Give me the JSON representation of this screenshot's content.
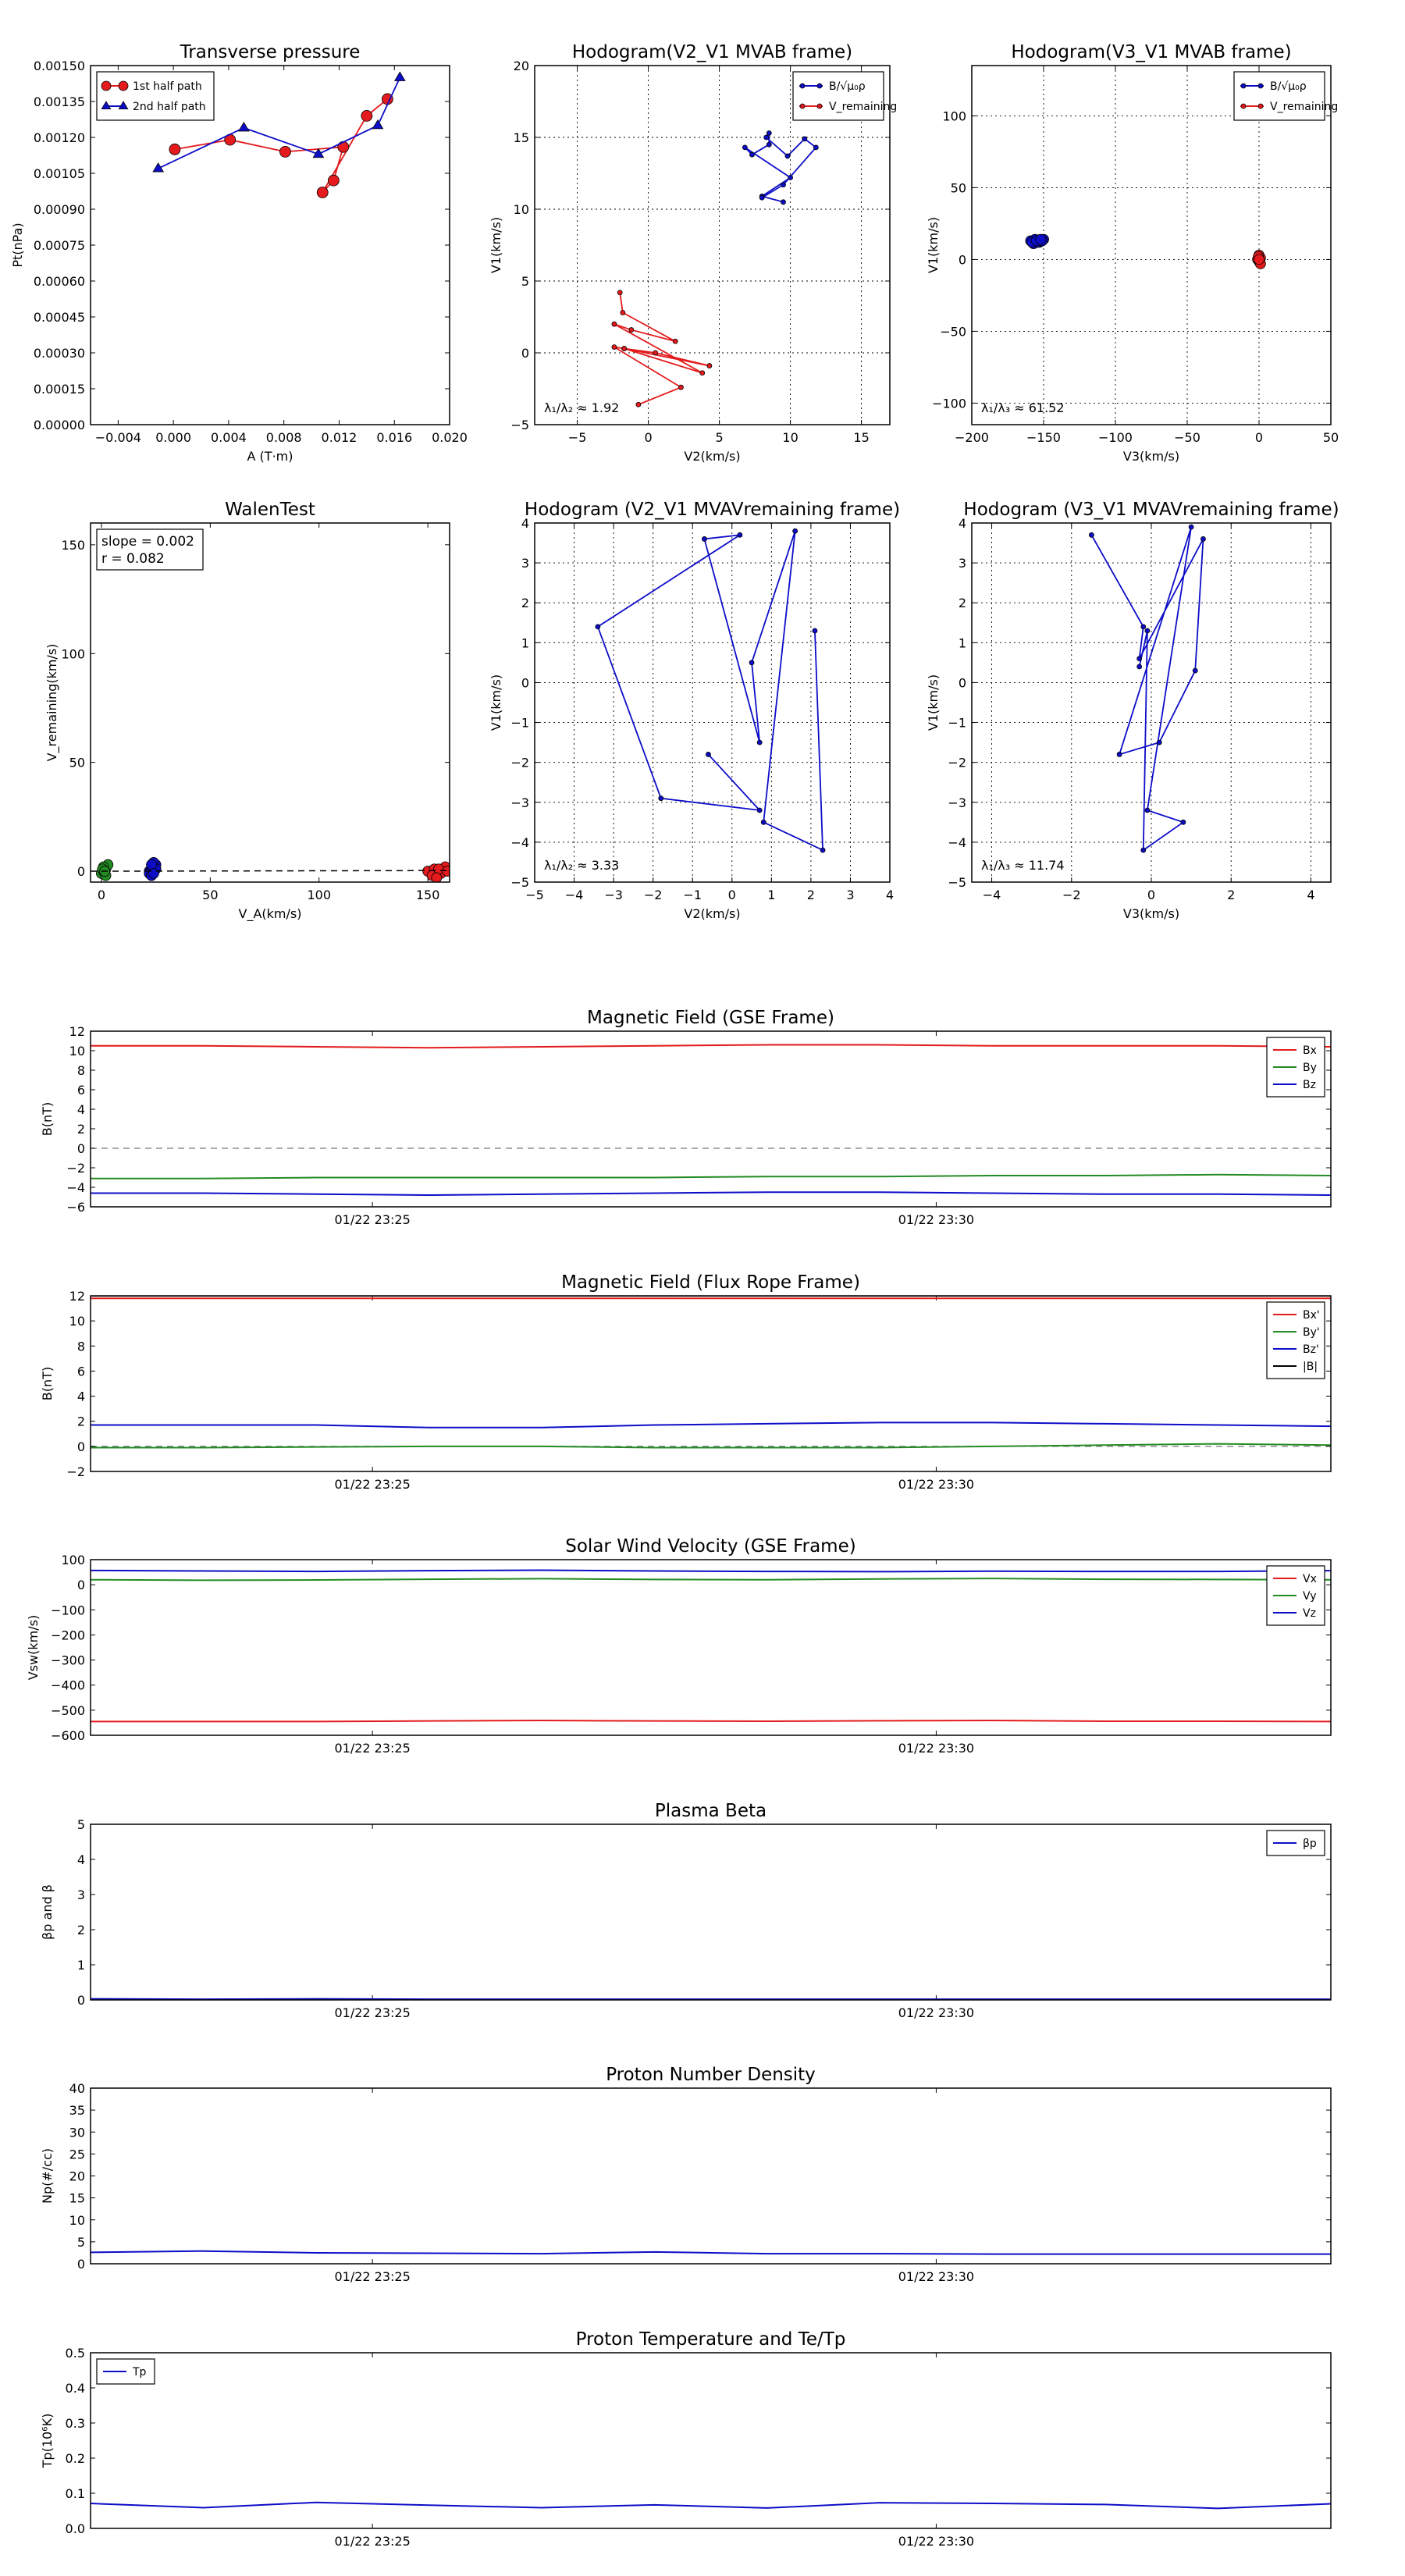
{
  "chart_data": [
    {
      "id": "tp",
      "type": "scatter",
      "title": "Transverse pressure",
      "xlabel": "A (T·m)",
      "ylabel": "Pt(nPa)",
      "xlim": [
        -0.006,
        0.02
      ],
      "ylim": [
        0,
        0.0015
      ],
      "xticks": [
        -0.004,
        0.0,
        0.004,
        0.008,
        0.012,
        0.016,
        0.02
      ],
      "xtick_labels": [
        "−0.004",
        "0.000",
        "0.004",
        "0.008",
        "0.012",
        "0.016",
        "0.020"
      ],
      "yticks": [
        0,
        0.00015,
        0.0003,
        0.00045,
        0.0006,
        0.00075,
        0.0009,
        0.00105,
        0.0012,
        0.00135,
        0.0015
      ],
      "ytick_labels": [
        "0.00000",
        "0.00015",
        "0.00030",
        "0.00045",
        "0.00060",
        "0.00075",
        "0.00090",
        "0.00105",
        "0.00120",
        "0.00135",
        "0.00150"
      ],
      "grid": false,
      "legend": "top-left",
      "series": [
        {
          "name": "1st half path",
          "color": "#e41a1c",
          "marker": "circle",
          "x": [
            0.0001,
            0.0041,
            0.0081,
            0.0123,
            0.0116,
            0.0108,
            0.014,
            0.0155
          ],
          "y": [
            0.00115,
            0.00119,
            0.00114,
            0.00116,
            0.00102,
            0.00097,
            0.00129,
            0.00136
          ]
        },
        {
          "name": "2nd half path",
          "color": "#0d0dc8",
          "marker": "triangle",
          "x": [
            -0.0011,
            0.0051,
            0.0105,
            0.0148,
            0.0164
          ],
          "y": [
            0.00107,
            0.00124,
            0.00113,
            0.00125,
            0.00145
          ]
        }
      ]
    },
    {
      "id": "h1",
      "type": "line",
      "title": "Hodogram(V2_V1 MVAB frame)",
      "xlabel": "V2(km/s)",
      "ylabel": "V1(km/s)",
      "xlim": [
        -8,
        17
      ],
      "ylim": [
        -5,
        20
      ],
      "xticks": [
        -5,
        0,
        5,
        10,
        15
      ],
      "xtick_labels": [
        "−5",
        "0",
        "5",
        "10",
        "15"
      ],
      "yticks": [
        -5,
        0,
        5,
        10,
        15,
        20
      ],
      "ytick_labels": [
        "−5",
        "0",
        "5",
        "10",
        "15",
        "20"
      ],
      "grid": true,
      "legend": "top-right",
      "annotation": "λ₁/λ₂ ≈ 1.92",
      "series": [
        {
          "name": "B/√μ₀ρ",
          "color": "#0d0dc8",
          "x": [
            9.5,
            8,
            10,
            6.8,
            7.3,
            8.5,
            8.5,
            8.3,
            9.8,
            11.0,
            11.8,
            9.5,
            8.0
          ],
          "y": [
            10.5,
            10.9,
            12.2,
            14.3,
            13.8,
            14.5,
            15.3,
            15.0,
            13.7,
            14.9,
            14.3,
            11.7,
            10.8
          ]
        },
        {
          "name": "V_remaining",
          "color": "#e41a1c",
          "x": [
            -2.0,
            -1.8,
            1.9,
            -1.2,
            -2.4,
            3.8,
            -1.7,
            0.5,
            4.3,
            -1.7,
            -2.4,
            2.3,
            -0.7
          ],
          "y": [
            4.2,
            2.8,
            0.8,
            1.6,
            2.0,
            -1.4,
            0.3,
            0.0,
            -0.9,
            0.3,
            0.4,
            -2.4,
            -3.6
          ]
        }
      ]
    },
    {
      "id": "h2",
      "type": "scatter",
      "title": "Hodogram(V3_V1 MVAB frame)",
      "xlabel": "V3(km/s)",
      "ylabel": "V1(km/s)",
      "xlim": [
        -200,
        50
      ],
      "ylim": [
        -115,
        135
      ],
      "xticks": [
        -200,
        -150,
        -100,
        -50,
        0,
        50
      ],
      "xtick_labels": [
        "−200",
        "−150",
        "−100",
        "−50",
        "0",
        "50"
      ],
      "yticks": [
        -100,
        -50,
        0,
        50,
        100
      ],
      "ytick_labels": [
        "−100",
        "−50",
        "0",
        "50",
        "100"
      ],
      "grid": true,
      "legend": "top-right",
      "annotation": "λ₁/λ₃ ≈ 61.52",
      "series": [
        {
          "name": "B/√μ₀ρ",
          "color": "#0d0dc8",
          "x": [
            -159,
            -156,
            -153,
            -150,
            -157,
            -154,
            -151,
            -158,
            -155,
            -152
          ],
          "y": [
            13,
            14,
            12,
            14,
            11,
            12,
            13,
            12,
            13,
            14
          ]
        },
        {
          "name": "V_remaining",
          "color": "#e41a1c",
          "x": [
            0,
            1,
            -1,
            0,
            0.5,
            -0.5,
            1,
            0
          ],
          "y": [
            3,
            1,
            0,
            -1,
            -2,
            2,
            -3,
            0
          ]
        }
      ]
    },
    {
      "id": "walen",
      "type": "scatter",
      "title": "WalenTest",
      "xlabel": "V_A(km/s)",
      "ylabel": "V_remaining(km/s)",
      "xlim": [
        -5,
        160
      ],
      "ylim": [
        -5,
        160
      ],
      "xticks": [
        0,
        50,
        100,
        150
      ],
      "xtick_labels": [
        "0",
        "50",
        "100",
        "150"
      ],
      "yticks": [
        0,
        50,
        100,
        150
      ],
      "ytick_labels": [
        "0",
        "50",
        "100",
        "150"
      ],
      "grid": false,
      "annotation": [
        "slope = 0.002",
        "r = 0.082"
      ],
      "series": [
        {
          "color": "#238b23",
          "x": [
            0,
            1,
            2,
            3,
            1,
            2,
            0.5,
            1.5
          ],
          "y": [
            -1,
            0,
            1,
            3,
            2,
            -2,
            1,
            0
          ]
        },
        {
          "color": "#0d0dc8",
          "x": [
            22,
            23,
            24,
            25,
            22,
            23,
            24,
            25,
            23,
            24
          ],
          "y": [
            0,
            1,
            2,
            3,
            -1,
            -2,
            4,
            1,
            3,
            -1
          ]
        },
        {
          "color": "#e41a1c",
          "x": [
            150,
            153,
            156,
            158,
            152,
            155,
            159,
            154
          ],
          "y": [
            0,
            1,
            -1,
            2,
            -2,
            1,
            0,
            -3
          ]
        }
      ]
    },
    {
      "id": "h3",
      "type": "line",
      "title": "Hodogram (V2_V1 MVAVremaining frame)",
      "xlabel": "V2(km/s)",
      "ylabel": "V1(km/s)",
      "xlim": [
        -5,
        4
      ],
      "ylim": [
        -5,
        4
      ],
      "xticks": [
        -5,
        -4,
        -3,
        -2,
        -1,
        0,
        1,
        2,
        3,
        4
      ],
      "xtick_labels": [
        "−5",
        "−4",
        "−3",
        "−2",
        "−1",
        "0",
        "1",
        "2",
        "3",
        "4"
      ],
      "yticks": [
        -5,
        -4,
        -3,
        -2,
        -1,
        0,
        1,
        2,
        3,
        4
      ],
      "ytick_labels": [
        "−5",
        "−4",
        "−3",
        "−2",
        "−1",
        "0",
        "1",
        "2",
        "3",
        "4"
      ],
      "grid": true,
      "annotation": "λ₁/λ₂ ≈ 3.33",
      "series": [
        {
          "color": "#0d0dc8",
          "x": [
            2.1,
            2.3,
            0.8,
            1.6,
            0.5,
            0.7,
            -0.7,
            0.2,
            -3.4,
            -1.8,
            0.7,
            -0.6
          ],
          "y": [
            1.3,
            -4.2,
            -3.5,
            3.8,
            0.5,
            -1.5,
            3.6,
            3.7,
            1.4,
            -2.9,
            -3.2,
            -1.8
          ]
        }
      ]
    },
    {
      "id": "h4",
      "type": "line",
      "title": "Hodogram (V3_V1 MVAVremaining frame)",
      "xlabel": "V3(km/s)",
      "ylabel": "V1(km/s)",
      "xlim": [
        -4.5,
        4.5
      ],
      "ylim": [
        -5,
        4
      ],
      "xticks": [
        -4,
        -2,
        0,
        2,
        4
      ],
      "xtick_labels": [
        "−4",
        "−2",
        "0",
        "2",
        "4"
      ],
      "yticks": [
        -5,
        -4,
        -3,
        -2,
        -1,
        0,
        1,
        2,
        3,
        4
      ],
      "ytick_labels": [
        "−5",
        "−4",
        "−3",
        "−2",
        "−1",
        "0",
        "1",
        "2",
        "3",
        "4"
      ],
      "grid": true,
      "annotation": "λ₁/λ₃ ≈ 11.74",
      "series": [
        {
          "color": "#0d0dc8",
          "x": [
            -1.5,
            -0.2,
            -0.3,
            1.3,
            1.1,
            0.2,
            -0.8,
            1.0,
            -0.1,
            0.8,
            -0.2,
            -0.1,
            -0.3
          ],
          "y": [
            3.7,
            1.4,
            0.6,
            3.6,
            0.3,
            -1.5,
            -1.8,
            3.9,
            -3.2,
            -3.5,
            -4.2,
            1.3,
            0.4
          ]
        }
      ]
    },
    {
      "id": "mag_gse",
      "type": "line",
      "title": "Magnetic Field (GSE Frame)",
      "ylabel": "B(nT)",
      "xlim": [
        0,
        11
      ],
      "ylim": [
        -6,
        12
      ],
      "yticks": [
        -6,
        -4,
        -2,
        0,
        2,
        4,
        6,
        8,
        10,
        12
      ],
      "ytick_labels": [
        "−6",
        "−4",
        "−2",
        "0",
        "2",
        "4",
        "6",
        "8",
        "10",
        "12"
      ],
      "xticks": [
        2.5,
        7.5
      ],
      "xtick_labels": [
        "01/22 23:25",
        "01/22 23:30"
      ],
      "zero_line": true,
      "legend": "top-right",
      "x": [
        0,
        1,
        2,
        3,
        4,
        5,
        6,
        7,
        8,
        9,
        10,
        11
      ],
      "series": [
        {
          "name": "Bx",
          "color": "#e41a1c",
          "values": [
            10.5,
            10.5,
            10.4,
            10.3,
            10.4,
            10.5,
            10.6,
            10.6,
            10.5,
            10.5,
            10.5,
            10.4
          ]
        },
        {
          "name": "By",
          "color": "#238b23",
          "values": [
            -3.1,
            -3.1,
            -3.0,
            -3.0,
            -3.0,
            -3.0,
            -2.9,
            -2.9,
            -2.8,
            -2.8,
            -2.7,
            -2.8
          ]
        },
        {
          "name": "Bz",
          "color": "#0d0dc8",
          "values": [
            -4.6,
            -4.6,
            -4.7,
            -4.8,
            -4.7,
            -4.6,
            -4.5,
            -4.5,
            -4.6,
            -4.7,
            -4.7,
            -4.8
          ]
        }
      ]
    },
    {
      "id": "mag_fr",
      "type": "line",
      "title": "Magnetic Field (Flux Rope Frame)",
      "ylabel": "B(nT)",
      "xlim": [
        0,
        11
      ],
      "ylim": [
        -2,
        12
      ],
      "yticks": [
        -2,
        0,
        2,
        4,
        6,
        8,
        10,
        12
      ],
      "ytick_labels": [
        "−2",
        "0",
        "2",
        "4",
        "6",
        "8",
        "10",
        "12"
      ],
      "xticks": [
        2.5,
        7.5
      ],
      "xtick_labels": [
        "01/22 23:25",
        "01/22 23:30"
      ],
      "zero_line": true,
      "legend": "top-right",
      "x": [
        0,
        1,
        2,
        3,
        4,
        5,
        6,
        7,
        8,
        9,
        10,
        11
      ],
      "series": [
        {
          "name": "Bx'",
          "color": "#e41a1c",
          "values": [
            11.8,
            11.8,
            11.8,
            11.8,
            11.8,
            11.8,
            11.8,
            11.8,
            11.8,
            11.8,
            11.8,
            11.8
          ]
        },
        {
          "name": "By'",
          "color": "#238b23",
          "values": [
            -0.1,
            -0.1,
            -0.05,
            0.0,
            0.0,
            -0.1,
            -0.1,
            -0.1,
            0.0,
            0.1,
            0.2,
            0.1
          ]
        },
        {
          "name": "Bz'",
          "color": "#0d0dc8",
          "values": [
            1.7,
            1.7,
            1.7,
            1.5,
            1.5,
            1.7,
            1.8,
            1.9,
            1.9,
            1.8,
            1.7,
            1.6
          ]
        },
        {
          "name": "|B|",
          "color": "#000000",
          "values": [
            12.0,
            12.0,
            12.0,
            12.0,
            12.0,
            12.0,
            12.0,
            12.0,
            12.0,
            12.0,
            12.0,
            12.0
          ]
        }
      ]
    },
    {
      "id": "vsw",
      "type": "line",
      "title": "Solar Wind Velocity (GSE Frame)",
      "ylabel": "Vsw(km/s)",
      "xlim": [
        0,
        11
      ],
      "ylim": [
        -600,
        100
      ],
      "yticks": [
        -600,
        -500,
        -400,
        -300,
        -200,
        -100,
        0,
        100
      ],
      "ytick_labels": [
        "−600",
        "−500",
        "−400",
        "−300",
        "−200",
        "−100",
        "0",
        "100"
      ],
      "xticks": [
        2.5,
        7.5
      ],
      "xtick_labels": [
        "01/22 23:25",
        "01/22 23:30"
      ],
      "legend": "top-right",
      "x": [
        0,
        1,
        2,
        3,
        4,
        5,
        6,
        7,
        8,
        9,
        10,
        11
      ],
      "series": [
        {
          "name": "Vx",
          "color": "#e41a1c",
          "values": [
            -545,
            -545,
            -545,
            -543,
            -541,
            -543,
            -544,
            -542,
            -541,
            -544,
            -544,
            -545
          ]
        },
        {
          "name": "Vy",
          "color": "#238b23",
          "values": [
            20,
            18,
            19,
            22,
            24,
            21,
            20,
            23,
            25,
            22,
            21,
            20
          ]
        },
        {
          "name": "Vz",
          "color": "#0d0dc8",
          "values": [
            57,
            55,
            53,
            56,
            58,
            55,
            53,
            52,
            54,
            53,
            53,
            56
          ]
        }
      ]
    },
    {
      "id": "beta",
      "type": "line",
      "title": "Plasma Beta",
      "ylabel": "βp and β",
      "xlim": [
        0,
        11
      ],
      "ylim": [
        0,
        5
      ],
      "yticks": [
        0,
        1,
        2,
        3,
        4,
        5
      ],
      "ytick_labels": [
        "0",
        "1",
        "2",
        "3",
        "4",
        "5"
      ],
      "xticks": [
        2.5,
        7.5
      ],
      "xtick_labels": [
        "01/22 23:25",
        "01/22 23:30"
      ],
      "legend": "top-right",
      "x": [
        0,
        1,
        2,
        3,
        4,
        5,
        6,
        7,
        8,
        9,
        10,
        11
      ],
      "series": [
        {
          "name": "βp",
          "color": "#0d0dc8",
          "values": [
            0.03,
            0.02,
            0.03,
            0.02,
            0.02,
            0.02,
            0.02,
            0.02,
            0.02,
            0.02,
            0.02,
            0.02
          ]
        }
      ]
    },
    {
      "id": "np",
      "type": "line",
      "title": "Proton Number Density",
      "ylabel": "Np(#/cc)",
      "xlim": [
        0,
        11
      ],
      "ylim": [
        0,
        40
      ],
      "yticks": [
        0,
        5,
        10,
        15,
        20,
        25,
        30,
        35,
        40
      ],
      "ytick_labels": [
        "0",
        "5",
        "10",
        "15",
        "20",
        "25",
        "30",
        "35",
        "40"
      ],
      "xticks": [
        2.5,
        7.5
      ],
      "xtick_labels": [
        "01/22 23:25",
        "01/22 23:30"
      ],
      "x": [
        0,
        1,
        2,
        3,
        4,
        5,
        6,
        7,
        8,
        9,
        10,
        11
      ],
      "series": [
        {
          "color": "#0d0dc8",
          "values": [
            2.6,
            2.9,
            2.5,
            2.4,
            2.3,
            2.7,
            2.3,
            2.3,
            2.2,
            2.2,
            2.2,
            2.2
          ]
        }
      ]
    },
    {
      "id": "tpt",
      "type": "line",
      "title": "Proton Temperature and Te/Tp",
      "ylabel": "Tp(10⁶K)",
      "xlim": [
        0,
        11
      ],
      "ylim": [
        0,
        0.5
      ],
      "yticks": [
        0,
        0.1,
        0.2,
        0.3,
        0.4,
        0.5
      ],
      "ytick_labels": [
        "0.0",
        "0.1",
        "0.2",
        "0.3",
        "0.4",
        "0.5"
      ],
      "xticks": [
        2.5,
        7.5
      ],
      "xtick_labels": [
        "01/22 23:25",
        "01/22 23:30"
      ],
      "legend": "top-left",
      "x": [
        0,
        1,
        2,
        3,
        4,
        5,
        6,
        7,
        8,
        9,
        10,
        11
      ],
      "series": [
        {
          "name": "Tp",
          "color": "#0d0dc8",
          "values": [
            0.071,
            0.059,
            0.074,
            0.066,
            0.059,
            0.067,
            0.058,
            0.073,
            0.071,
            0.068,
            0.057,
            0.07
          ]
        }
      ]
    }
  ]
}
